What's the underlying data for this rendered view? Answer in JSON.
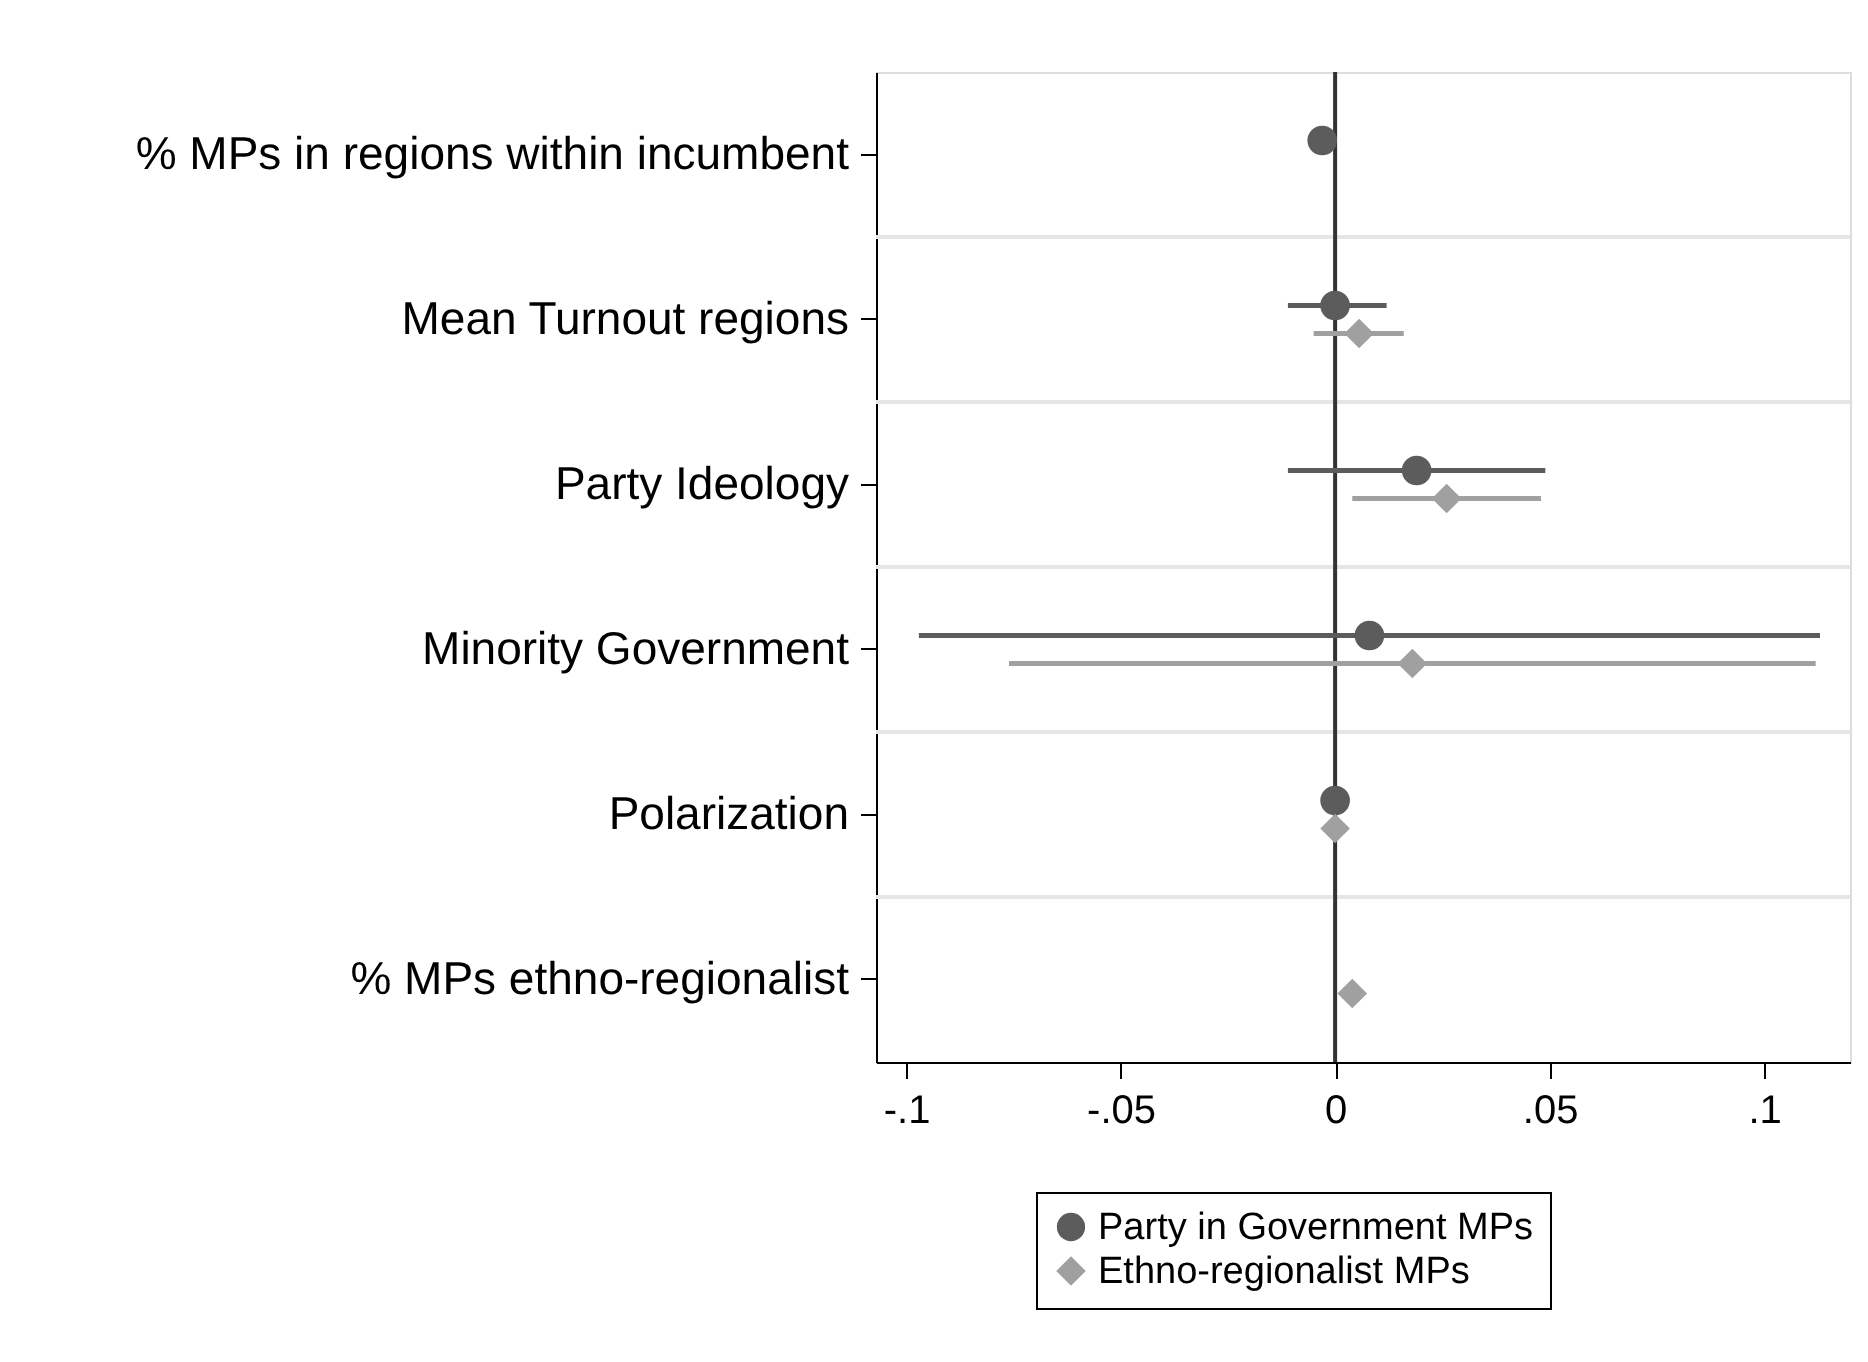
{
  "chart_data": {
    "type": "scatter",
    "orientation": "horizontal",
    "categories": [
      "% MPs in regions within incumbent",
      "Mean Turnout regions",
      "Party Ideology",
      "Minority Government",
      "Polarization",
      "% MPs ethno-regionalist"
    ],
    "series": [
      {
        "name": "Party in Government MPs",
        "color": "#5c5c5c",
        "marker": "circle",
        "values": [
          -0.003,
          0,
          0.019,
          0.008,
          0,
          null
        ],
        "errors": [
          null,
          [
            -0.011,
            0.012
          ],
          [
            -0.011,
            0.049
          ],
          [
            -0.097,
            0.113
          ],
          null,
          null
        ]
      },
      {
        "name": "Ethno-regionalist MPs",
        "color": "#a0a0a0",
        "marker": "diamond",
        "values": [
          null,
          0.0056,
          0.026,
          0.018,
          0,
          0.004
        ],
        "errors": [
          null,
          [
            -0.005,
            0.016
          ],
          [
            0.004,
            0.048
          ],
          [
            -0.076,
            0.112
          ],
          null,
          null
        ]
      }
    ],
    "xlim": [
      -0.107,
      0.12
    ],
    "xticks": [
      {
        "value": -0.1,
        "label": "-.1"
      },
      {
        "value": -0.05,
        "label": "-.05"
      },
      0,
      {
        "value": 0.05,
        "label": ".05"
      },
      {
        "value": 0.1,
        "label": ".1"
      }
    ],
    "ref_lines": [
      {
        "axis": "x",
        "value": 0,
        "color": "#333333"
      }
    ],
    "grid": "y",
    "legend": "bottom"
  }
}
